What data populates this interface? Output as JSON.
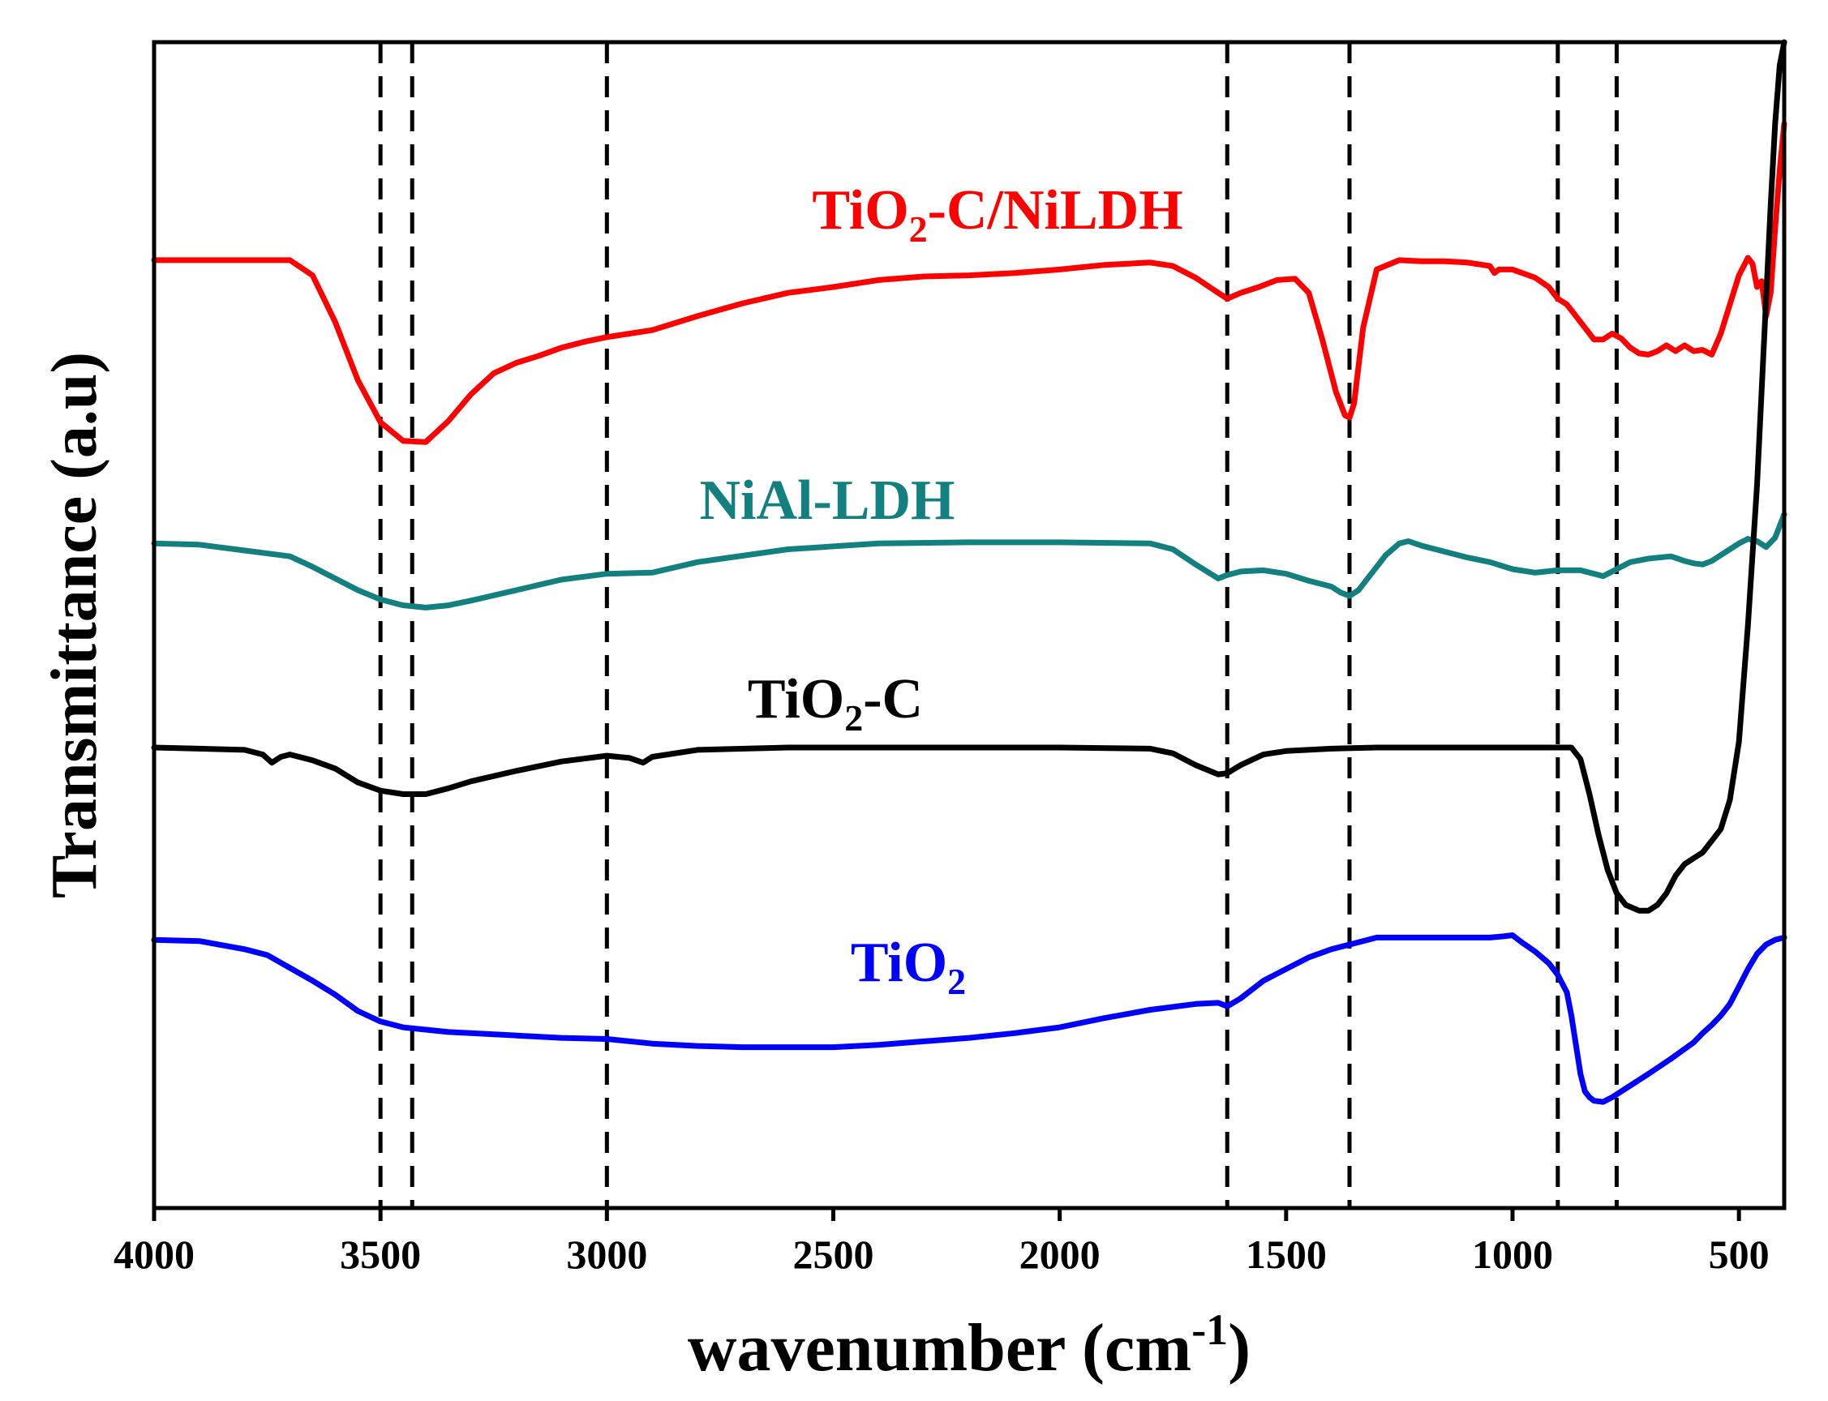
{
  "chart_data": {
    "type": "line",
    "title": "",
    "xlabel": "wavenumber (cm",
    "xlabel_sup": "-1",
    "xlabel_close": ")",
    "ylabel": "Transmittance (a.u)",
    "xlim": [
      4000,
      400
    ],
    "x_reversed": true,
    "ylim": [
      0,
      100
    ],
    "grid": false,
    "x_ticks": [
      4000,
      3500,
      3000,
      2500,
      2000,
      1500,
      1000,
      500
    ],
    "x_tick_labels": [
      "4000",
      "3500",
      "3000",
      "2500",
      "2000",
      "1500",
      "1000",
      "500"
    ],
    "y_ticks_shown": false,
    "reference_lines": [
      3500,
      3430,
      3000,
      1630,
      1360,
      900,
      770
    ],
    "series": [
      {
        "name": "TiO2-C/NiLDH",
        "label": {
          "base": "TiO",
          "sub": "2",
          "rest": "-C/NiLDH"
        },
        "color": "#ff0000",
        "x": [
          4000,
          3700,
          3650,
          3600,
          3550,
          3500,
          3450,
          3400,
          3350,
          3300,
          3250,
          3200,
          3150,
          3100,
          3050,
          3000,
          2900,
          2800,
          2700,
          2600,
          2500,
          2400,
          2300,
          2200,
          2100,
          2000,
          1900,
          1800,
          1750,
          1700,
          1650,
          1630,
          1600,
          1560,
          1520,
          1480,
          1450,
          1420,
          1390,
          1370,
          1360,
          1350,
          1330,
          1300,
          1250,
          1200,
          1150,
          1100,
          1050,
          1040,
          1030,
          1000,
          950,
          920,
          900,
          880,
          860,
          840,
          820,
          800,
          780,
          760,
          740,
          720,
          700,
          680,
          660,
          640,
          620,
          600,
          580,
          560,
          540,
          520,
          500,
          480,
          470,
          460,
          450,
          440,
          430,
          420,
          410,
          400
        ],
        "y": [
          81.3,
          81.3,
          80.0,
          76.0,
          71.0,
          67.4,
          65.8,
          65.7,
          67.5,
          69.8,
          71.6,
          72.5,
          73.1,
          73.8,
          74.3,
          74.7,
          75.3,
          76.5,
          77.6,
          78.5,
          79.0,
          79.6,
          79.9,
          80.0,
          80.2,
          80.5,
          80.9,
          81.1,
          80.8,
          79.8,
          78.5,
          78.0,
          78.5,
          79.0,
          79.6,
          79.7,
          78.5,
          74.5,
          70.0,
          68.0,
          67.8,
          69.0,
          75.5,
          80.5,
          81.3,
          81.2,
          81.2,
          81.1,
          80.8,
          80.2,
          80.5,
          80.5,
          79.8,
          79.0,
          78.0,
          77.5,
          76.5,
          75.5,
          74.5,
          74.5,
          75.0,
          74.6,
          73.8,
          73.3,
          73.2,
          73.5,
          74.0,
          73.5,
          74.0,
          73.5,
          73.6,
          73.2,
          75.0,
          77.5,
          80.0,
          81.5,
          81.0,
          79.0,
          79.5,
          76.5,
          78.5,
          84.0,
          89.0,
          93.0
        ]
      },
      {
        "name": "NiAl-LDH",
        "label": {
          "base": "NiAl-LDH",
          "sub": "",
          "rest": ""
        },
        "color": "#138080",
        "x": [
          4000,
          3900,
          3800,
          3700,
          3650,
          3600,
          3550,
          3500,
          3450,
          3400,
          3350,
          3300,
          3200,
          3100,
          3000,
          2900,
          2800,
          2600,
          2400,
          2200,
          2000,
          1800,
          1750,
          1700,
          1650,
          1630,
          1600,
          1550,
          1500,
          1450,
          1400,
          1380,
          1360,
          1340,
          1320,
          1300,
          1280,
          1250,
          1230,
          1200,
          1150,
          1100,
          1050,
          1000,
          950,
          900,
          850,
          820,
          800,
          780,
          760,
          740,
          700,
          650,
          620,
          600,
          580,
          560,
          540,
          520,
          500,
          480,
          460,
          440,
          420,
          410,
          400
        ],
        "y": [
          57.0,
          56.9,
          56.4,
          55.9,
          55.0,
          54.0,
          53.0,
          52.2,
          51.7,
          51.5,
          51.7,
          52.1,
          53.0,
          53.9,
          54.4,
          54.5,
          55.4,
          56.5,
          57.0,
          57.1,
          57.1,
          57.0,
          56.5,
          55.2,
          54.0,
          54.3,
          54.6,
          54.7,
          54.4,
          53.8,
          53.3,
          52.8,
          52.5,
          53.0,
          54.0,
          55.0,
          56.0,
          57.0,
          57.2,
          56.8,
          56.3,
          55.8,
          55.4,
          54.8,
          54.5,
          54.7,
          54.7,
          54.4,
          54.2,
          54.6,
          55.0,
          55.4,
          55.7,
          55.9,
          55.5,
          55.3,
          55.2,
          55.5,
          56.0,
          56.5,
          57.0,
          57.4,
          57.2,
          56.7,
          57.5,
          58.5,
          59.5
        ]
      },
      {
        "name": "TiO2-C",
        "label": {
          "base": "TiO",
          "sub": "2",
          "rest": "-C"
        },
        "color": "#000000",
        "x": [
          4000,
          3900,
          3800,
          3760,
          3740,
          3720,
          3700,
          3650,
          3600,
          3550,
          3500,
          3450,
          3400,
          3350,
          3300,
          3200,
          3100,
          3000,
          2950,
          2920,
          2900,
          2800,
          2600,
          2400,
          2200,
          2000,
          1800,
          1750,
          1700,
          1650,
          1630,
          1600,
          1550,
          1500,
          1400,
          1300,
          1200,
          1100,
          1000,
          900,
          870,
          850,
          830,
          810,
          790,
          770,
          750,
          720,
          700,
          680,
          660,
          640,
          620,
          600,
          580,
          560,
          540,
          520,
          500,
          480,
          460,
          450,
          440,
          430,
          420,
          410,
          400
        ],
        "y": [
          39.5,
          39.4,
          39.3,
          38.9,
          38.2,
          38.7,
          38.9,
          38.4,
          37.7,
          36.5,
          35.8,
          35.5,
          35.5,
          36.0,
          36.6,
          37.5,
          38.3,
          38.8,
          38.6,
          38.2,
          38.7,
          39.3,
          39.5,
          39.5,
          39.5,
          39.5,
          39.4,
          39.0,
          38.0,
          37.2,
          37.3,
          38.0,
          38.9,
          39.2,
          39.4,
          39.5,
          39.5,
          39.5,
          39.5,
          39.5,
          39.5,
          38.5,
          35.5,
          32.0,
          29.0,
          27.0,
          26.0,
          25.5,
          25.5,
          26.0,
          27.0,
          28.5,
          29.5,
          30.0,
          30.5,
          31.5,
          32.5,
          35.0,
          40.0,
          50.0,
          62.0,
          70.0,
          78.0,
          86.0,
          93.0,
          98.0,
          100.0
        ]
      },
      {
        "name": "TiO2",
        "label": {
          "base": "TiO",
          "sub": "2",
          "rest": ""
        },
        "color": "#0000ff",
        "x": [
          4000,
          3900,
          3800,
          3750,
          3700,
          3650,
          3600,
          3550,
          3500,
          3450,
          3400,
          3350,
          3300,
          3200,
          3100,
          3000,
          2900,
          2800,
          2700,
          2600,
          2500,
          2400,
          2300,
          2200,
          2100,
          2000,
          1900,
          1800,
          1700,
          1650,
          1630,
          1600,
          1550,
          1500,
          1450,
          1400,
          1350,
          1300,
          1200,
          1100,
          1050,
          1020,
          1000,
          980,
          950,
          920,
          900,
          880,
          870,
          860,
          850,
          840,
          830,
          820,
          800,
          780,
          760,
          740,
          720,
          700,
          650,
          600,
          580,
          560,
          540,
          520,
          500,
          480,
          460,
          440,
          420,
          410,
          400
        ],
        "y": [
          23.0,
          22.9,
          22.2,
          21.7,
          20.6,
          19.5,
          18.3,
          16.9,
          16.0,
          15.5,
          15.3,
          15.1,
          15.0,
          14.8,
          14.6,
          14.5,
          14.1,
          13.9,
          13.8,
          13.8,
          13.8,
          14.0,
          14.3,
          14.6,
          15.0,
          15.5,
          16.3,
          17.0,
          17.5,
          17.6,
          17.3,
          18.0,
          19.5,
          20.5,
          21.5,
          22.2,
          22.7,
          23.2,
          23.2,
          23.2,
          23.2,
          23.3,
          23.4,
          22.8,
          22.0,
          21.0,
          20.0,
          18.5,
          16.5,
          14.0,
          11.5,
          10.0,
          9.5,
          9.2,
          9.1,
          9.5,
          10.0,
          10.5,
          11.0,
          11.5,
          12.8,
          14.2,
          15.0,
          15.7,
          16.5,
          17.5,
          19.0,
          20.5,
          21.8,
          22.6,
          23.0,
          23.1,
          23.2
        ]
      }
    ]
  }
}
